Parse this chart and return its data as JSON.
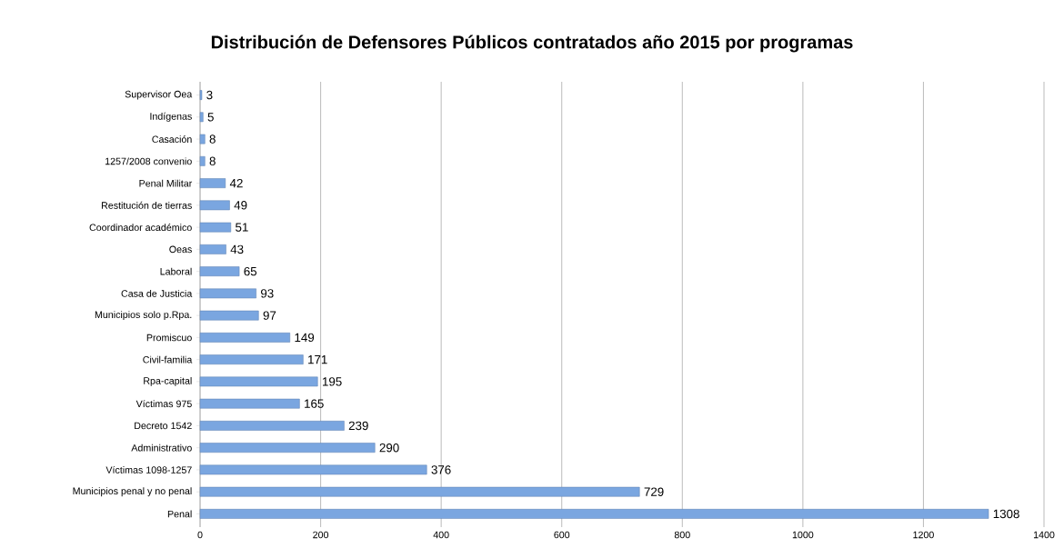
{
  "chart_data": {
    "type": "bar",
    "orientation": "horizontal",
    "title": "Distribución de Defensores Públicos contratados año 2015 por programas",
    "categories": [
      "Supervisor Oea",
      "Indígenas",
      "Casación",
      "1257/2008 convenio",
      "Penal Militar",
      "Restitución de tierras",
      "Coordinador académico",
      "Oeas",
      "Laboral",
      "Casa de Justicia",
      "Municipios solo p.Rpa.",
      "Promiscuo",
      "Civil-familia",
      "Rpa-capital",
      "Víctimas 975",
      "Decreto 1542",
      "Administrativo",
      "Víctimas 1098-1257",
      "Municipios penal y no penal",
      "Penal"
    ],
    "values": [
      3,
      5,
      8,
      8,
      42,
      49,
      51,
      43,
      65,
      93,
      97,
      149,
      171,
      195,
      165,
      239,
      290,
      376,
      729,
      1308
    ],
    "color": "#7aa6e0",
    "xlim": [
      0,
      1400
    ],
    "xticks": [
      0,
      200,
      400,
      600,
      800,
      1000,
      1200,
      1400
    ],
    "grid": "x",
    "data_labels": true
  }
}
